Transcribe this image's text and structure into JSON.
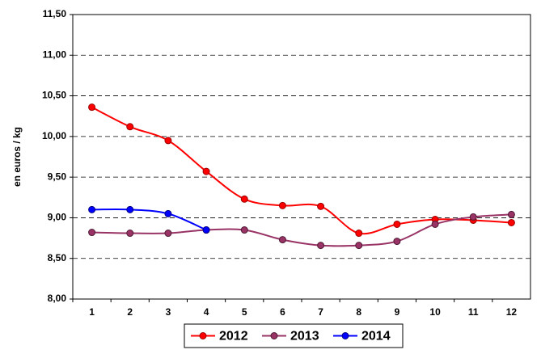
{
  "chart_data": {
    "type": "line",
    "y_label": "en euros / kg",
    "categories": [
      "1",
      "2",
      "3",
      "4",
      "5",
      "6",
      "7",
      "8",
      "9",
      "10",
      "11",
      "12"
    ],
    "series": [
      {
        "name": "2012",
        "color": "#ff0000",
        "values": [
          10.36,
          10.12,
          9.95,
          9.57,
          9.23,
          9.15,
          9.14,
          8.81,
          8.92,
          8.98,
          8.97,
          8.94
        ]
      },
      {
        "name": "2013",
        "color": "#993366",
        "values": [
          8.82,
          8.81,
          8.81,
          8.85,
          8.85,
          8.73,
          8.66,
          8.66,
          8.71,
          8.92,
          9.01,
          9.04
        ]
      },
      {
        "name": "2014",
        "color": "#0000ff",
        "values": [
          9.1,
          9.1,
          9.05,
          8.85,
          null,
          null,
          null,
          null,
          null,
          null,
          null,
          null
        ]
      }
    ],
    "ylim": [
      8,
      11.5
    ],
    "yticks": [
      {
        "value": 8,
        "label": "8,00"
      },
      {
        "value": 8.5,
        "label": "8,50"
      },
      {
        "value": 9,
        "label": "9,00"
      },
      {
        "value": 9.5,
        "label": "9,50"
      },
      {
        "value": 10,
        "label": "10,00"
      },
      {
        "value": 10.5,
        "label": "10,50"
      },
      {
        "value": 11,
        "label": "11,00"
      },
      {
        "value": 11.5,
        "label": "11,50"
      }
    ],
    "grid": true,
    "legend": "bottom"
  }
}
